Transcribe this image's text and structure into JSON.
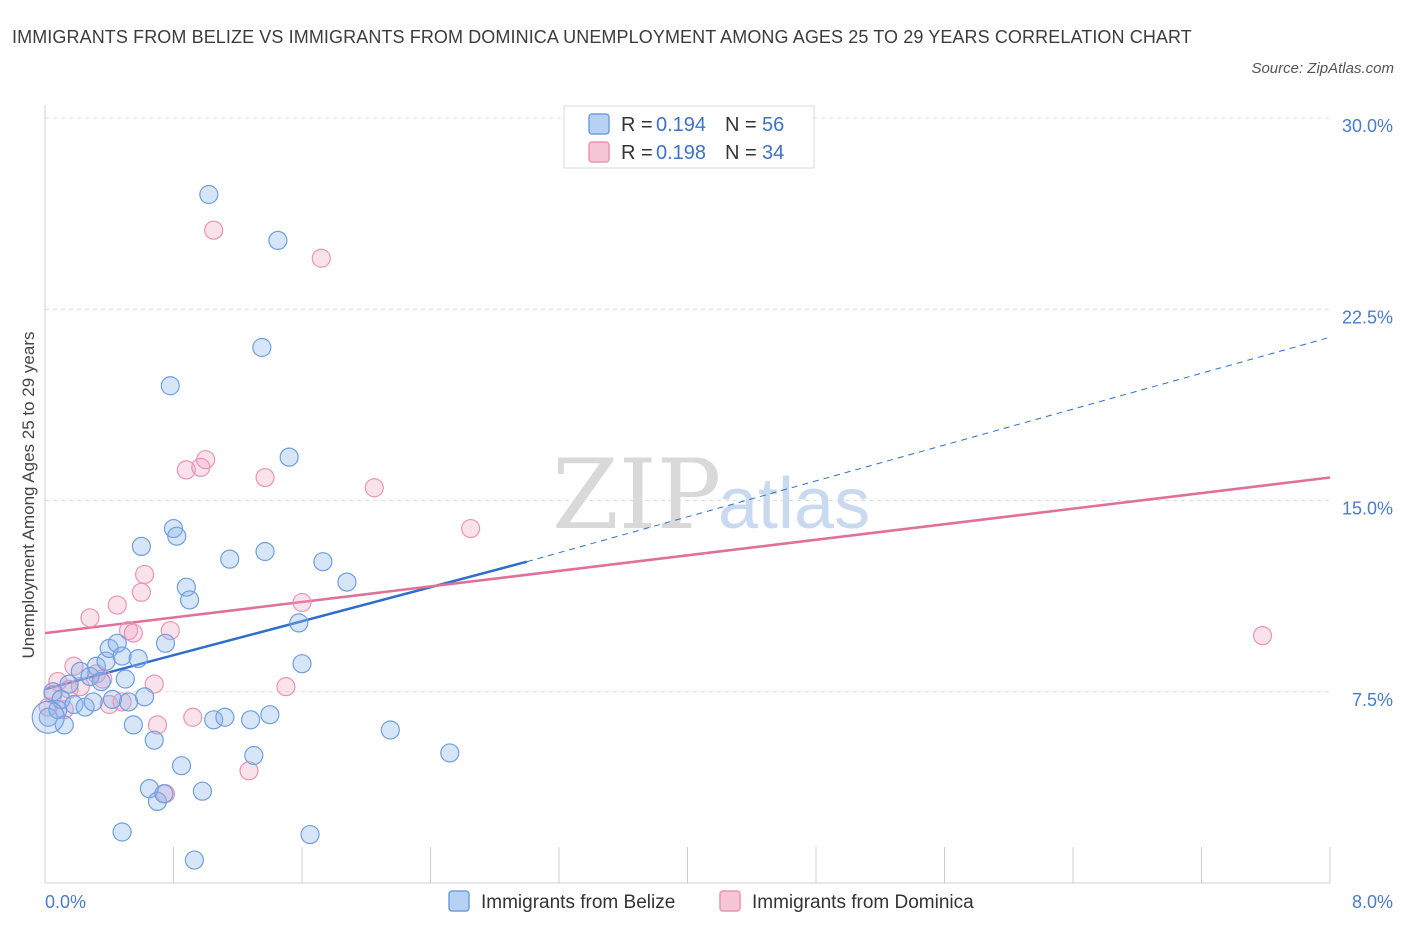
{
  "header": {
    "title": "IMMIGRANTS FROM BELIZE VS IMMIGRANTS FROM DOMINICA UNEMPLOYMENT AMONG AGES 25 TO 29 YEARS CORRELATION CHART",
    "source": "Source: ZipAtlas.com"
  },
  "watermark": {
    "zip": "ZIP",
    "atlas": "atlas"
  },
  "legend": {
    "belize": {
      "r_label": "R = ",
      "r_value": "0.194",
      "n_label": "N = ",
      "n_value": "56"
    },
    "dominica": {
      "r_label": "R = ",
      "r_value": "0.198",
      "n_label": "N = ",
      "n_value": "34"
    }
  },
  "chart_data": {
    "type": "scatter",
    "title": "IMMIGRANTS FROM BELIZE VS IMMIGRANTS FROM DOMINICA UNEMPLOYMENT AMONG AGES 25 TO 29 YEARS CORRELATION CHART",
    "xlabel": "",
    "ylabel": "Unemployment Among Ages 25 to 29 years",
    "xlim": [
      0,
      8
    ],
    "ylim": [
      0,
      30
    ],
    "x_tick_labels": [
      "0.0%",
      "8.0%"
    ],
    "y_ticks": [
      7.5,
      15,
      22.5,
      30
    ],
    "y_tick_labels": [
      "7.5%",
      "15.0%",
      "22.5%",
      "30.0%"
    ],
    "grid": true,
    "legend_position": "top-center",
    "colors": {
      "belize": "#6e9fe0",
      "dominica": "#eb94b3",
      "belize_line": "#2f6fcc",
      "dominica_line": "#e0709a"
    },
    "series": [
      {
        "name": "Immigrants from Belize",
        "R": 0.194,
        "N": 56,
        "trend": {
          "x": [
            0,
            3.0
          ],
          "y": [
            7.6,
            12.6
          ],
          "extended_to": [
            8.0,
            21.4
          ]
        },
        "points": [
          [
            0.02,
            6.5
          ],
          [
            0.05,
            7.5
          ],
          [
            0.08,
            6.8
          ],
          [
            0.1,
            7.2
          ],
          [
            0.12,
            6.2
          ],
          [
            0.15,
            7.8
          ],
          [
            0.18,
            7.0
          ],
          [
            0.22,
            8.3
          ],
          [
            0.25,
            6.9
          ],
          [
            0.28,
            8.1
          ],
          [
            0.3,
            7.1
          ],
          [
            0.32,
            8.5
          ],
          [
            0.35,
            7.9
          ],
          [
            0.38,
            8.7
          ],
          [
            0.4,
            9.2
          ],
          [
            0.42,
            7.2
          ],
          [
            0.45,
            9.4
          ],
          [
            0.48,
            8.9
          ],
          [
            0.5,
            8.0
          ],
          [
            0.52,
            7.1
          ],
          [
            0.55,
            6.2
          ],
          [
            0.58,
            8.8
          ],
          [
            0.6,
            13.2
          ],
          [
            0.62,
            7.3
          ],
          [
            0.65,
            3.7
          ],
          [
            0.68,
            5.6
          ],
          [
            0.7,
            3.2
          ],
          [
            0.75,
            9.4
          ],
          [
            0.78,
            19.5
          ],
          [
            0.8,
            13.9
          ],
          [
            0.82,
            13.6
          ],
          [
            0.85,
            4.6
          ],
          [
            0.88,
            11.6
          ],
          [
            0.9,
            11.1
          ],
          [
            0.93,
            0.9
          ],
          [
            0.98,
            3.6
          ],
          [
            1.02,
            27.0
          ],
          [
            1.05,
            6.4
          ],
          [
            1.12,
            6.5
          ],
          [
            1.15,
            12.7
          ],
          [
            1.28,
            6.4
          ],
          [
            1.3,
            5.0
          ],
          [
            1.35,
            21.0
          ],
          [
            1.37,
            13.0
          ],
          [
            1.4,
            6.6
          ],
          [
            1.45,
            25.2
          ],
          [
            1.52,
            16.7
          ],
          [
            1.58,
            10.2
          ],
          [
            1.6,
            8.6
          ],
          [
            1.65,
            1.9
          ],
          [
            1.73,
            12.6
          ],
          [
            1.88,
            11.8
          ],
          [
            2.15,
            6.0
          ],
          [
            2.52,
            5.1
          ],
          [
            0.48,
            2.0
          ],
          [
            0.74,
            3.5
          ]
        ]
      },
      {
        "name": "Immigrants from Dominica",
        "R": 0.198,
        "N": 34,
        "trend": {
          "x": [
            0,
            8.0
          ],
          "y": [
            9.8,
            15.9
          ]
        },
        "points": [
          [
            0.02,
            6.9
          ],
          [
            0.05,
            7.4
          ],
          [
            0.08,
            7.9
          ],
          [
            0.12,
            6.8
          ],
          [
            0.15,
            7.6
          ],
          [
            0.18,
            8.5
          ],
          [
            0.22,
            7.7
          ],
          [
            0.28,
            10.4
          ],
          [
            0.32,
            8.2
          ],
          [
            0.36,
            8.0
          ],
          [
            0.4,
            7.0
          ],
          [
            0.45,
            10.9
          ],
          [
            0.48,
            7.1
          ],
          [
            0.52,
            9.9
          ],
          [
            0.55,
            9.8
          ],
          [
            0.6,
            11.4
          ],
          [
            0.62,
            12.1
          ],
          [
            0.68,
            7.8
          ],
          [
            0.7,
            6.2
          ],
          [
            0.75,
            3.5
          ],
          [
            0.78,
            9.9
          ],
          [
            0.88,
            16.2
          ],
          [
            0.92,
            6.5
          ],
          [
            0.97,
            16.3
          ],
          [
            1.0,
            16.6
          ],
          [
            1.05,
            25.6
          ],
          [
            1.27,
            4.4
          ],
          [
            1.37,
            15.9
          ],
          [
            1.5,
            7.7
          ],
          [
            1.6,
            11.0
          ],
          [
            1.72,
            24.5
          ],
          [
            2.05,
            15.5
          ],
          [
            2.65,
            13.9
          ],
          [
            7.58,
            9.7
          ]
        ]
      }
    ]
  }
}
